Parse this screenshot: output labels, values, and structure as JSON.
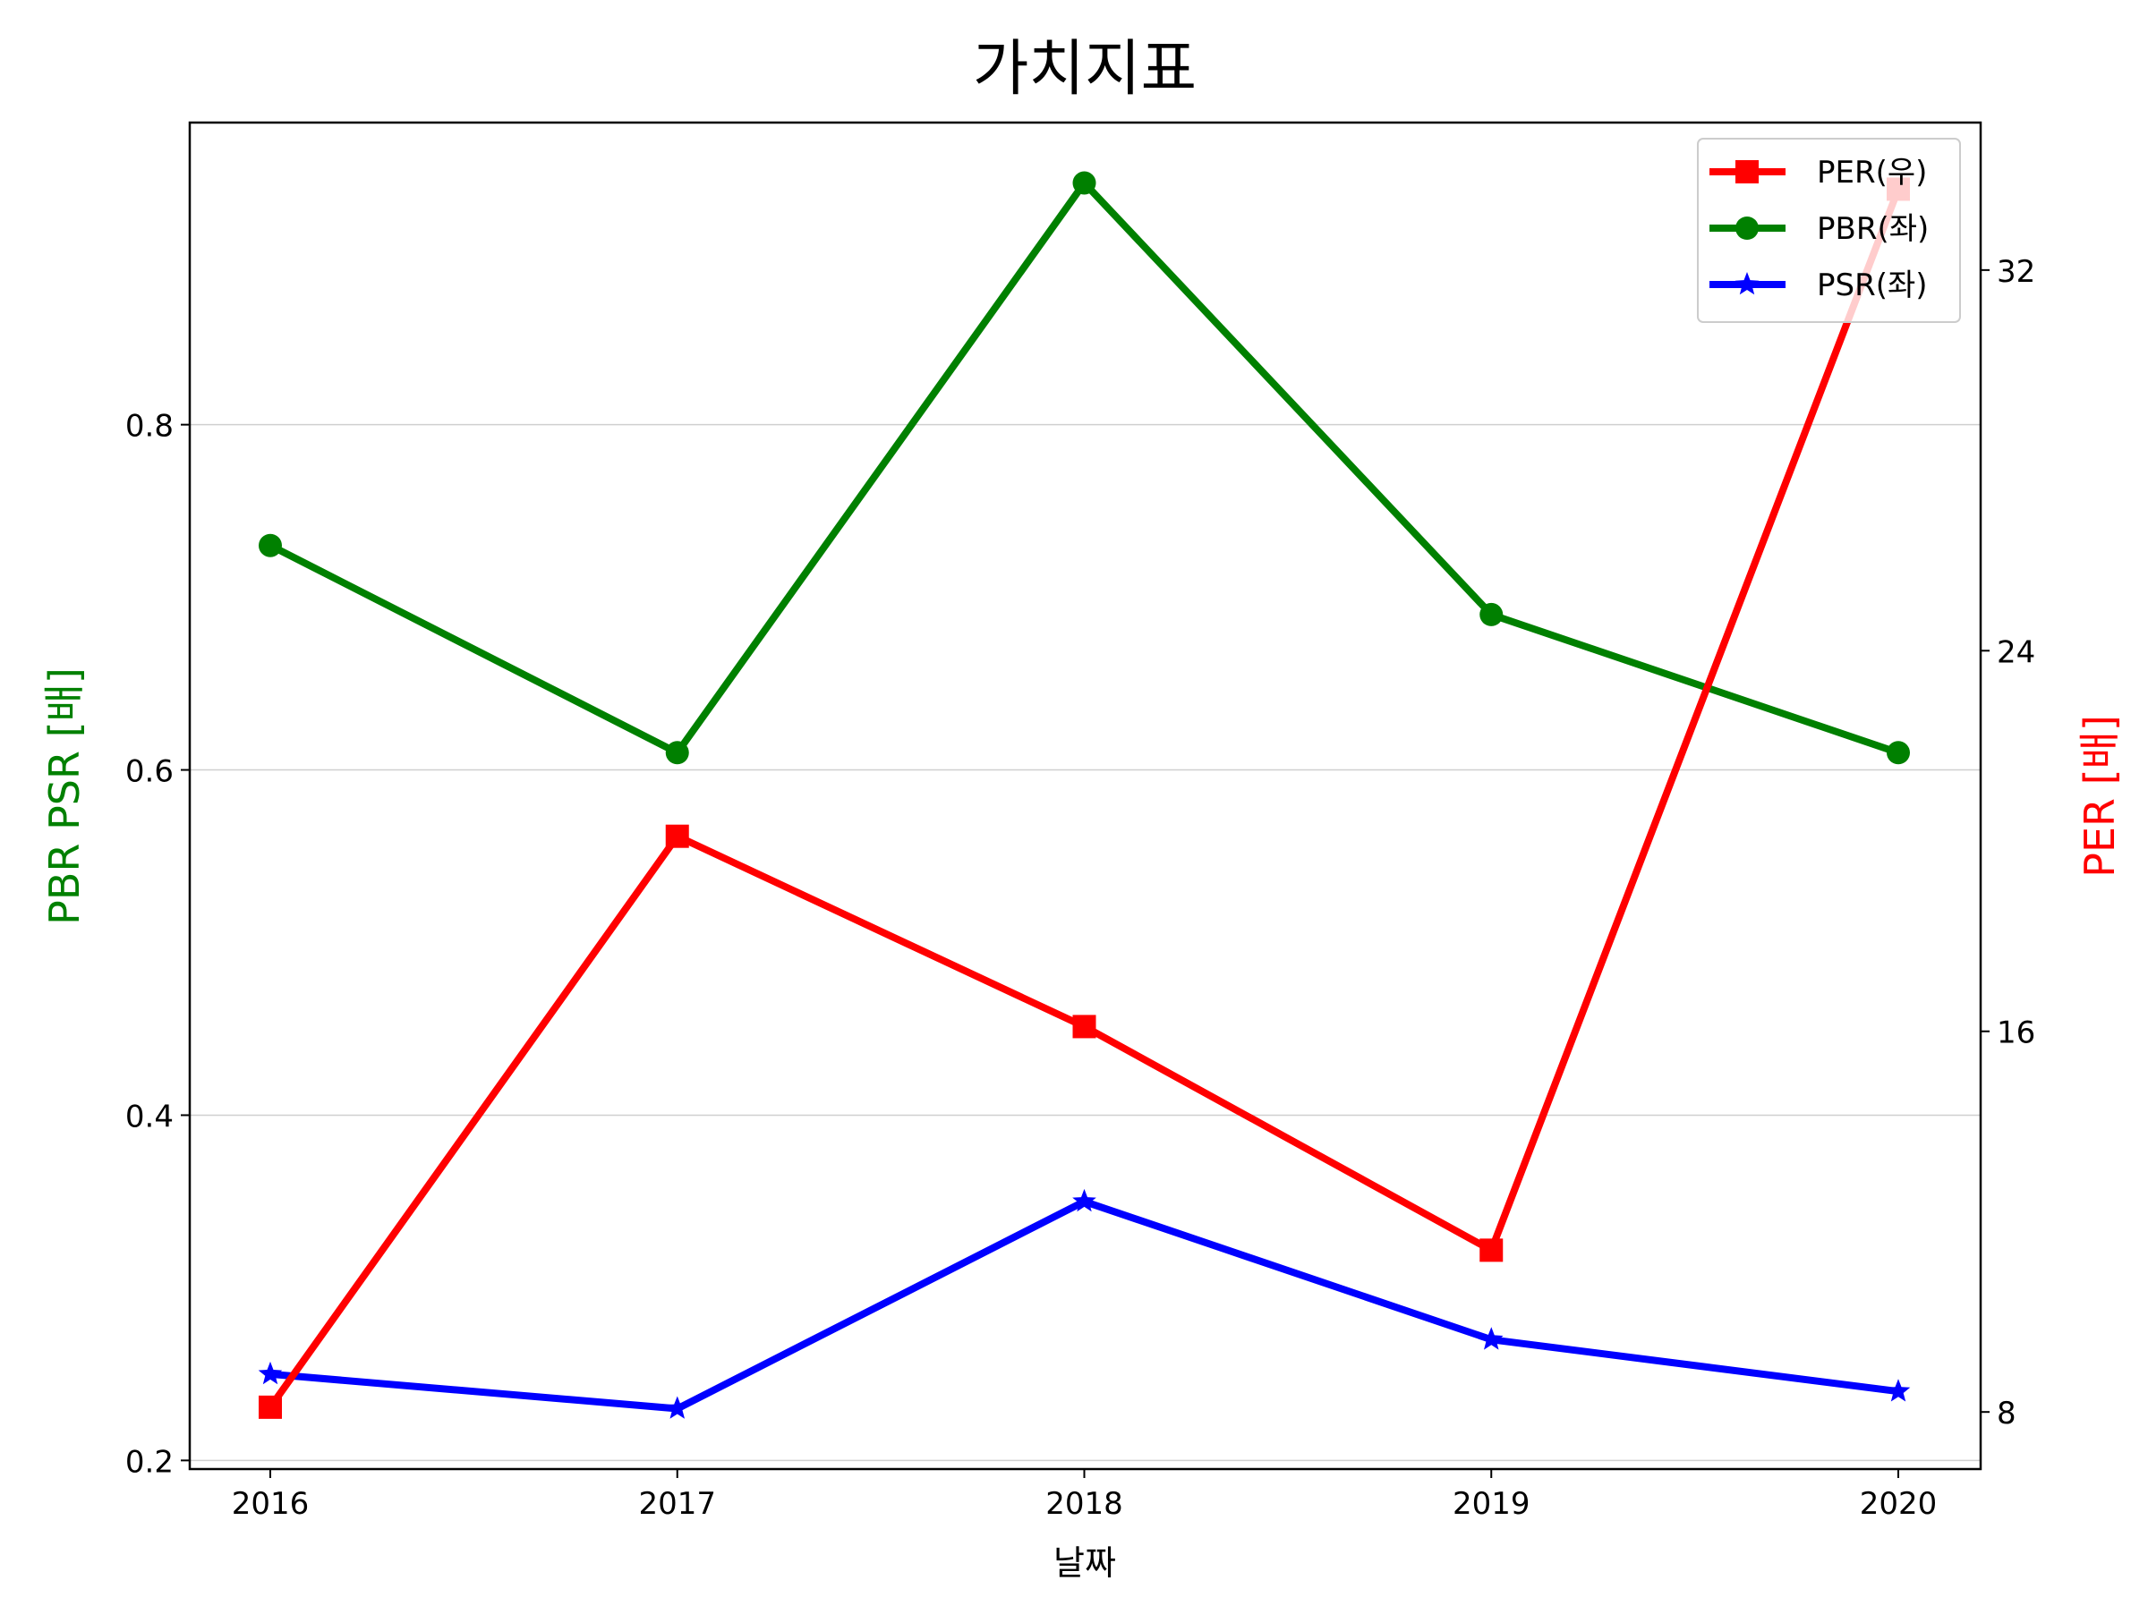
{
  "chart_data": {
    "type": "line",
    "title": "가치지표",
    "xlabel": "날짜",
    "ylabel_left": "PBR PSR [배]",
    "ylabel_right": "PER [배]",
    "categories": [
      "2016",
      "2017",
      "2018",
      "2019",
      "2020"
    ],
    "x_ticks": [
      "2016",
      "2017",
      "2018",
      "2019",
      "2020"
    ],
    "y_left": {
      "lim": [
        0.195,
        0.975
      ],
      "ticks": [
        0.2,
        0.4,
        0.6,
        0.8
      ],
      "tick_labels": [
        "0.2",
        "0.4",
        "0.6",
        "0.8"
      ],
      "grid": true
    },
    "y_right": {
      "lim": [
        6.8,
        35.1
      ],
      "ticks": [
        8,
        16,
        24,
        32
      ],
      "tick_labels": [
        "8",
        "16",
        "24",
        "32"
      ]
    },
    "legend": {
      "position": "top-right",
      "entries": [
        "PER(우)",
        "PBR(좌)",
        "PSR(좌)"
      ]
    },
    "series": [
      {
        "name": "PER(우)",
        "axis": "right",
        "color": "#ff0000",
        "marker": "square",
        "values": [
          8.1,
          20.1,
          16.1,
          11.4,
          33.7
        ]
      },
      {
        "name": "PBR(좌)",
        "axis": "left",
        "color": "#008000",
        "marker": "circle",
        "values": [
          0.73,
          0.61,
          0.94,
          0.69,
          0.61
        ]
      },
      {
        "name": "PSR(좌)",
        "axis": "left",
        "color": "#0000ff",
        "marker": "star",
        "values": [
          0.25,
          0.23,
          0.35,
          0.27,
          0.24
        ]
      }
    ],
    "colors": {
      "left_axis_label": "#008000",
      "right_axis_label": "#ff0000"
    }
  }
}
